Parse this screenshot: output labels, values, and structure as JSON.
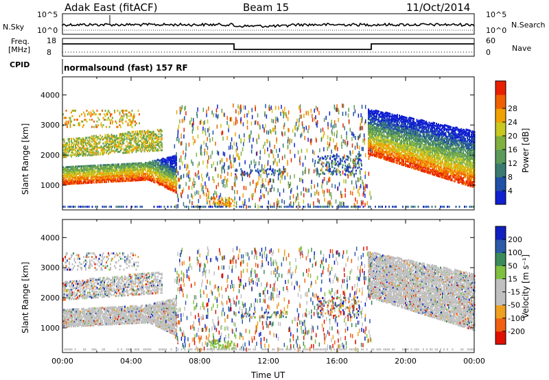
{
  "header": {
    "station": "Adak East (fitACF)",
    "beam": "Beam 15",
    "date": "11/Oct/2014"
  },
  "panels": {
    "noise": {
      "left_label": "N.Sky",
      "left_ticks": [
        "10^5",
        "10^0"
      ],
      "right_label": "N.Search",
      "right_ticks": [
        "10^5",
        "10^0"
      ]
    },
    "freq": {
      "left_label_1": "Freq.",
      "left_label_2": "[MHz]",
      "left_ticks": [
        "18",
        "8"
      ],
      "right_label": "Nave",
      "right_ticks": [
        "60",
        "0"
      ]
    },
    "cpid": {
      "label": "CPID",
      "text": "normalsound (fast) 157 RF"
    }
  },
  "colors": {
    "power_scale": [
      "#1020d0",
      "#2050a8",
      "#3a7a70",
      "#5a9a5a",
      "#80b040",
      "#c8c820",
      "#f0a000",
      "#f06000",
      "#e82000"
    ],
    "velocity_scale": [
      "#1020c0",
      "#2a5aa8",
      "#3a8a5a",
      "#80c040",
      "#c0c0c0",
      "#c0c0c0",
      "#f0a020",
      "#f06010",
      "#e01000"
    ]
  },
  "chart_data": [
    {
      "type": "heatmap",
      "title": "Power",
      "ylabel": "Slant Range [km]",
      "yticks": [
        "1000",
        "2000",
        "3000",
        "4000"
      ],
      "ylim": [
        180,
        4600
      ],
      "colorbar_label": "Power [dB]",
      "colorbar_ticks": [
        "4",
        "8",
        "12",
        "16",
        "20",
        "24",
        "28"
      ]
    },
    {
      "type": "heatmap",
      "title": "Velocity",
      "ylabel": "Slant Range [km]",
      "yticks": [
        "1000",
        "2000",
        "3000",
        "4000"
      ],
      "ylim": [
        180,
        4600
      ],
      "xlabel": "Time UT",
      "xticks": [
        "00:00",
        "04:00",
        "08:00",
        "12:00",
        "16:00",
        "20:00",
        "00:00"
      ],
      "colorbar_label": "Velocity [m s⁻¹]",
      "colorbar_ticks": [
        "200",
        "100",
        "50",
        "15",
        "-15",
        "-50",
        "-100",
        "-200"
      ]
    }
  ]
}
